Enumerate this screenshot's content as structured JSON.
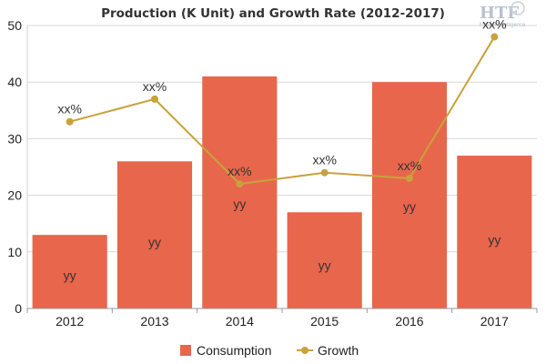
{
  "chart_data": {
    "type": "bar",
    "title": "Production (K Unit) and Growth Rate (2012-2017)",
    "categories": [
      "2012",
      "2013",
      "2014",
      "2015",
      "2016",
      "2017"
    ],
    "ylim": [
      0,
      50
    ],
    "yticks": [
      0,
      10,
      20,
      30,
      40,
      50
    ],
    "grid": true,
    "legend_position": "bottom",
    "series": [
      {
        "name": "Consumption",
        "type": "bar",
        "color": "#e8664c",
        "values": [
          13,
          26,
          41,
          17,
          40,
          27
        ],
        "labels": [
          "yy",
          "yy",
          "yy",
          "yy",
          "yy",
          "yy"
        ]
      },
      {
        "name": "Growth",
        "type": "line",
        "color": "#c8a23c",
        "values": [
          33,
          37,
          22,
          24,
          23,
          48
        ],
        "labels": [
          "xx%",
          "xx%",
          "xx%",
          "xx%",
          "xx%",
          "xx%"
        ]
      }
    ]
  },
  "watermark": {
    "logo_text": "HTF",
    "logo_subtext": "Market Intelligence",
    "icon": "globe-icon"
  }
}
